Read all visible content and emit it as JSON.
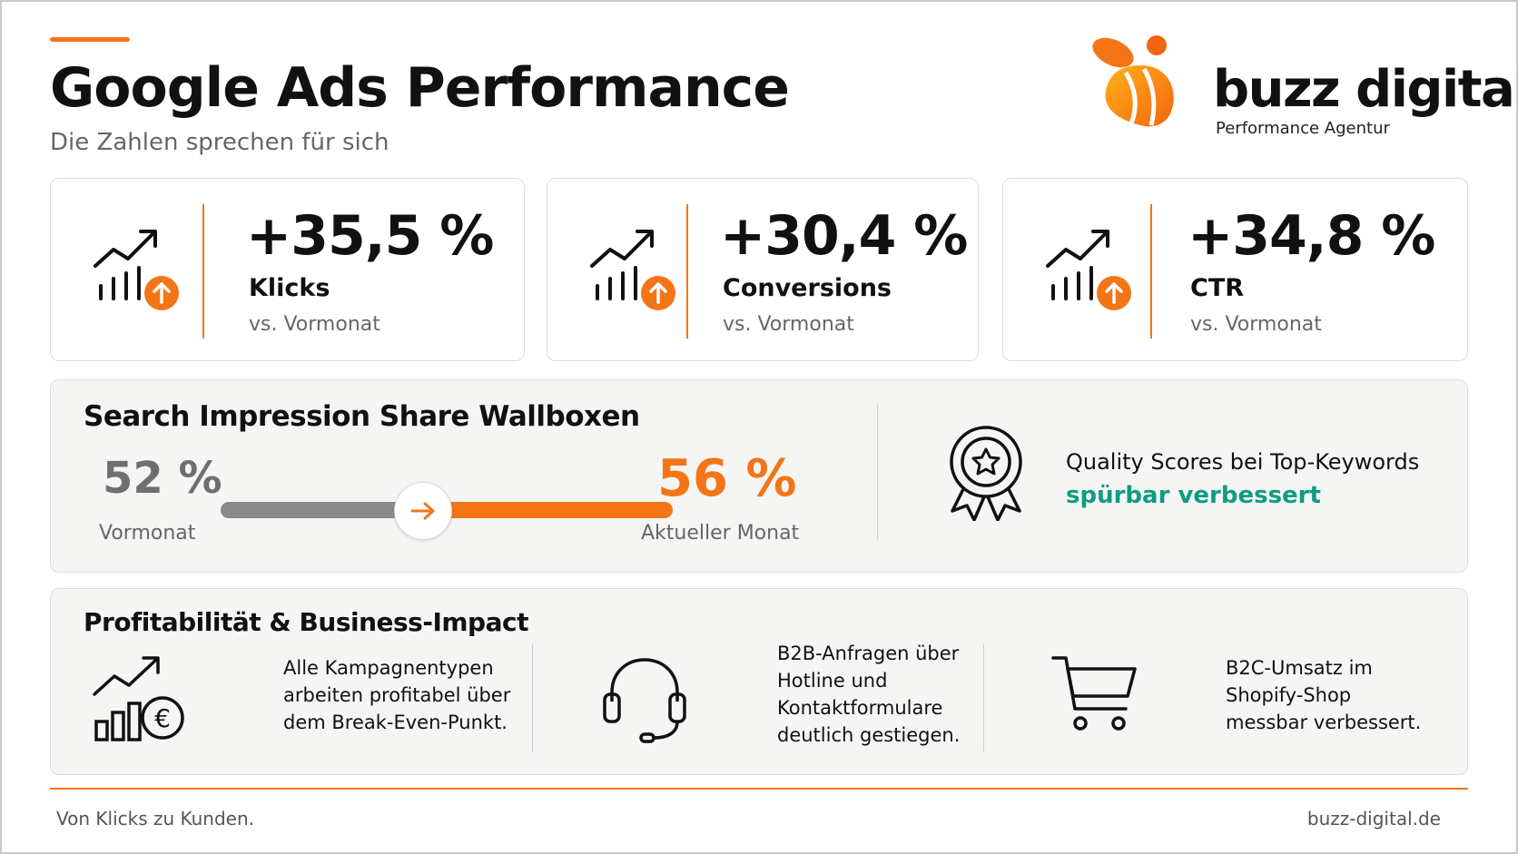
{
  "header": {
    "title": "Google Ads Performance",
    "subtitle": "Die Zahlen sprechen für sich"
  },
  "brand": {
    "name": "buzz digital",
    "tagline": "Performance Agentur",
    "accent_color": "#f47516",
    "highlight_color": "#0e9c84"
  },
  "kpis": [
    {
      "value": "+35,5 %",
      "label": "Klicks",
      "comparison": "vs. Vormonat",
      "icon": "trend-up-icon"
    },
    {
      "value": "+30,4 %",
      "label": "Conversions",
      "comparison": "vs. Vormonat",
      "icon": "trend-up-icon"
    },
    {
      "value": "+34,8 %",
      "label": "CTR",
      "comparison": "vs. Vormonat",
      "icon": "trend-up-icon"
    }
  ],
  "impression_share": {
    "title": "Search Impression Share Wallboxen",
    "previous_value": "52 %",
    "previous_label": "Vormonat",
    "current_value": "56 %",
    "current_label": "Aktueller Monat",
    "quality_line1": "Quality Scores bei Top-Keywords",
    "quality_line2": "spürbar verbessert"
  },
  "business": {
    "title": "Profitabilität & Business-Impact",
    "items": [
      {
        "icon": "chart-euro-icon",
        "lines": [
          "Alle Kampagnentypen",
          "arbeiten profitabel über",
          "dem Break-Even-Punkt."
        ]
      },
      {
        "icon": "headset-icon",
        "lines": [
          "B2B-Anfragen über",
          "Hotline und",
          "Kontaktformulare",
          "deutlich gestiegen."
        ]
      },
      {
        "icon": "shopping-cart-icon",
        "lines": [
          "B2C-Umsatz im",
          "Shopify-Shop",
          "messbar verbessert."
        ]
      }
    ]
  },
  "footer": {
    "slogan": "Von Klicks zu Kunden.",
    "website": "buzz-digital.de"
  }
}
